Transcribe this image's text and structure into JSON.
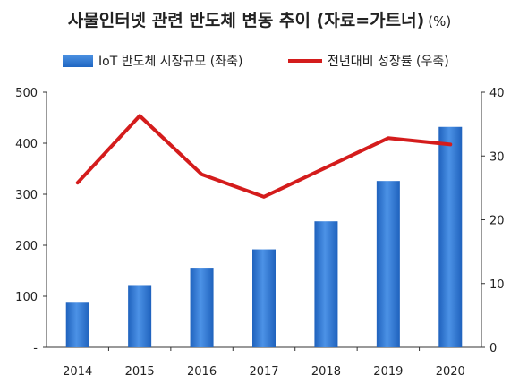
{
  "title": "사물인터넷 관련 반도체 변동 추이 (자료=가트너)",
  "unit": "(%)",
  "legend": {
    "bar_label": "IoT 반도체 시장규모 (좌축)",
    "line_label": "전년대비 성장률 (우축)"
  },
  "colors": {
    "bar": "#2a72d4",
    "line": "#d41c1c"
  },
  "chart_data": {
    "type": "bar+line",
    "categories": [
      "2014",
      "2015",
      "2016",
      "2017",
      "2018",
      "2019",
      "2020"
    ],
    "series": [
      {
        "name": "IoT 반도체 시장규모 (좌축)",
        "type": "bar",
        "axis": "left",
        "values": [
          89,
          122,
          156,
          192,
          247,
          326,
          432
        ]
      },
      {
        "name": "전년대비 성장률 (우축)",
        "type": "line",
        "axis": "right",
        "values": [
          25.8,
          36.3,
          27.1,
          23.6,
          28.2,
          32.8,
          31.8
        ]
      }
    ],
    "y_left": {
      "ylim": [
        0,
        500
      ],
      "ticks": [
        "-",
        "100",
        "200",
        "300",
        "400",
        "500"
      ]
    },
    "y_right": {
      "ylim": [
        0,
        40
      ],
      "ticks": [
        "0",
        "10",
        "20",
        "30",
        "40"
      ]
    },
    "grid": false,
    "legend_position": "top"
  }
}
